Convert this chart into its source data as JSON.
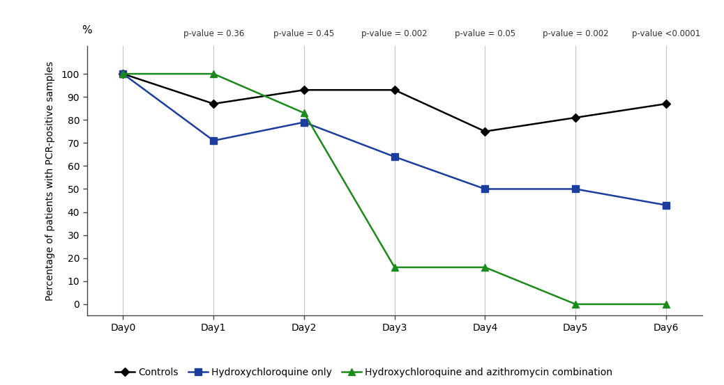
{
  "days": [
    "Day0",
    "Day1",
    "Day2",
    "Day3",
    "Day4",
    "Day5",
    "Day6"
  ],
  "controls": [
    100,
    87,
    93,
    93,
    75,
    81,
    87
  ],
  "hydroxychloroquine": [
    100,
    71,
    79,
    64,
    50,
    50,
    43
  ],
  "combination": [
    100,
    100,
    83,
    16,
    16,
    0,
    0
  ],
  "pvalues": [
    "p-value = 0.36",
    "p-value = 0.45",
    "p-value = 0.002",
    "p-value = 0.05",
    "p-value = 0.002",
    "p-value <0.0001"
  ],
  "ylabel": "Percentage of patients with PCR-positive samples",
  "percent_label": "%",
  "ylim": [
    -5,
    112
  ],
  "yticks": [
    0,
    10,
    20,
    30,
    40,
    50,
    60,
    70,
    80,
    90,
    100
  ],
  "colors": {
    "controls": "#000000",
    "hydroxychloroquine": "#1a3d9e",
    "combination": "#1a8a1a"
  },
  "legend_labels": [
    "Controls",
    "Hydroxychloroquine only",
    "Hydroxychloroquine and azithromycin combination"
  ],
  "background_color": "#ffffff",
  "grid_color": "#c8c8c8",
  "pvalue_fontsize": 8.5,
  "legend_fontsize": 10,
  "ylabel_fontsize": 10,
  "tick_fontsize": 10
}
